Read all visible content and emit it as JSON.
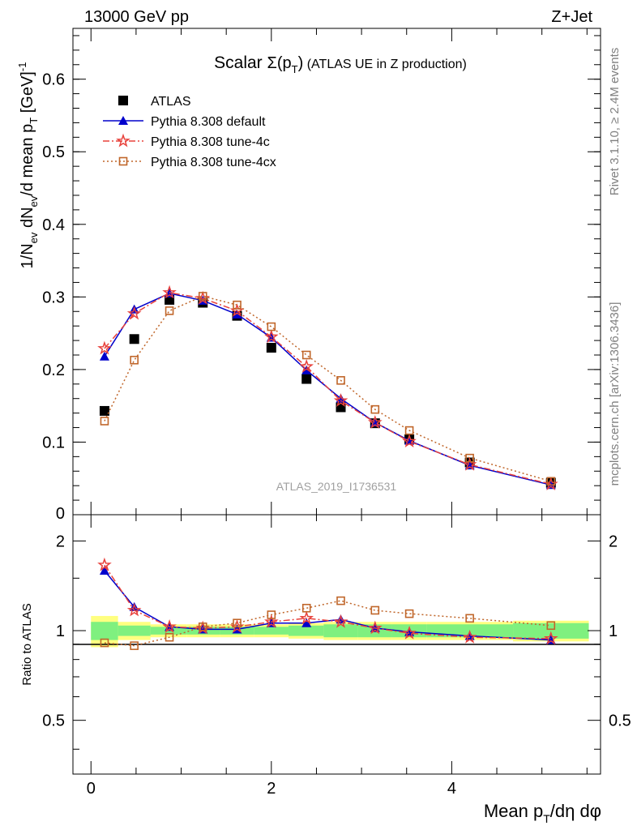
{
  "header": {
    "left": "13000 GeV pp",
    "right": "Z+Jet"
  },
  "side": {
    "rivet": "Rivet 3.1.10, ≥ 2.4M events",
    "mcplots": "mcplots.cern.ch [arXiv:1306.3436]"
  },
  "colors": {
    "atlas": "#000000",
    "default": "#0000cc",
    "tune4c": "#e8423c",
    "tune4cx": "#c0662a",
    "band_inner": "#7ff07f",
    "band_outer": "#ffff80"
  },
  "chart_data": [
    {
      "type": "scatter",
      "panel": "main",
      "title": "Scalar Σ(p_T) (ATLAS UE in Z production)",
      "title_prefix": "Scalar ",
      "title_sym": "Σ(p",
      "title_sub": "T",
      "title_close": ")",
      "title_rest": " (ATLAS UE in Z production)",
      "ylabel": "1/N_ev dN_ev/d mean p_T [GeV]^-1",
      "watermark": "ATLAS_2019_I1736531",
      "xlim": [
        -0.2,
        5.65
      ],
      "ylim": [
        0,
        0.67
      ],
      "yticks": [
        0.1,
        0.2,
        0.3,
        0.4,
        0.5,
        0.6
      ],
      "ytick_labels": [
        "0.1",
        "0.2",
        "0.3",
        "0.4",
        "0.5",
        "0.6"
      ],
      "ytick_bottom_partial": "0",
      "legend_position": "top-left",
      "x": [
        0.15,
        0.48,
        0.87,
        1.24,
        1.62,
        2.0,
        2.39,
        2.77,
        3.15,
        3.53,
        4.2,
        5.1
      ],
      "series": [
        {
          "name": "ATLAS",
          "key": "atlas",
          "marker": "square-filled",
          "values": [
            0.143,
            0.242,
            0.296,
            0.292,
            0.274,
            0.23,
            0.187,
            0.148,
            0.126,
            0.104,
            0.072,
            0.044
          ]
        },
        {
          "name": "Pythia 8.308 default",
          "key": "default",
          "marker": "triangle-filled",
          "line": "solid",
          "values": [
            0.218,
            0.283,
            0.305,
            0.295,
            0.276,
            0.244,
            0.199,
            0.16,
            0.127,
            0.102,
            0.068,
            0.041
          ]
        },
        {
          "name": "Pythia 8.308 tune-4c",
          "key": "tune4c",
          "marker": "star-open",
          "line": "dashdot",
          "values": [
            0.229,
            0.277,
            0.306,
            0.298,
            0.281,
            0.245,
            0.204,
            0.157,
            0.127,
            0.101,
            0.069,
            0.042
          ]
        },
        {
          "name": "Pythia 8.308 tune-4cx",
          "key": "tune4cx",
          "marker": "square-open",
          "line": "dotted",
          "values": [
            0.129,
            0.213,
            0.281,
            0.301,
            0.289,
            0.259,
            0.22,
            0.185,
            0.145,
            0.116,
            0.078,
            0.046
          ]
        }
      ]
    },
    {
      "type": "line",
      "panel": "ratio",
      "ylabel": "Ratio to ATLAS",
      "xlabel": "Mean p_T/dη dφ",
      "xlabel_main": "Mean p",
      "xlabel_sub": "T",
      "xlabel_rest": "/dη dφ",
      "xlim": [
        -0.2,
        5.65
      ],
      "ylim": [
        0.33,
        2.45
      ],
      "yticks": [
        0.5,
        1,
        2
      ],
      "ytick_labels": [
        "0.5",
        "1",
        "2"
      ],
      "xticks": [
        0,
        2,
        4
      ],
      "xtick_labels": [
        "0",
        "2",
        "4"
      ],
      "x": [
        0.15,
        0.48,
        0.87,
        1.24,
        1.62,
        2.0,
        2.39,
        2.77,
        3.15,
        3.53,
        4.2,
        5.1
      ],
      "bins": [
        [
          0,
          0.3
        ],
        [
          0.3,
          0.66
        ],
        [
          0.66,
          1.06
        ],
        [
          1.06,
          1.43
        ],
        [
          1.43,
          1.81
        ],
        [
          1.81,
          2.19
        ],
        [
          2.19,
          2.58
        ],
        [
          2.58,
          2.96
        ],
        [
          2.96,
          3.34
        ],
        [
          3.34,
          3.72
        ],
        [
          3.72,
          4.68
        ],
        [
          4.68,
          5.52
        ]
      ],
      "band_inner": [
        0.07,
        0.04,
        0.03,
        0.03,
        0.03,
        0.03,
        0.04,
        0.05,
        0.05,
        0.05,
        0.05,
        0.06
      ],
      "band_outer": [
        0.12,
        0.07,
        0.05,
        0.05,
        0.05,
        0.05,
        0.06,
        0.07,
        0.07,
        0.07,
        0.07,
        0.08
      ],
      "series": [
        {
          "name": "Pythia 8.308 default",
          "key": "default",
          "values": [
            1.59,
            1.2,
            1.03,
            1.01,
            1.01,
            1.06,
            1.06,
            1.09,
            1.02,
            0.99,
            0.96,
            0.93
          ]
        },
        {
          "name": "Pythia 8.308 tune-4c",
          "key": "tune4c",
          "values": [
            1.66,
            1.17,
            1.03,
            1.02,
            1.03,
            1.07,
            1.1,
            1.07,
            1.02,
            0.98,
            0.95,
            0.94
          ]
        },
        {
          "name": "Pythia 8.308 tune-4cx",
          "key": "tune4cx",
          "values": [
            0.91,
            0.89,
            0.95,
            1.03,
            1.06,
            1.13,
            1.19,
            1.26,
            1.17,
            1.14,
            1.1,
            1.04
          ]
        }
      ]
    }
  ]
}
